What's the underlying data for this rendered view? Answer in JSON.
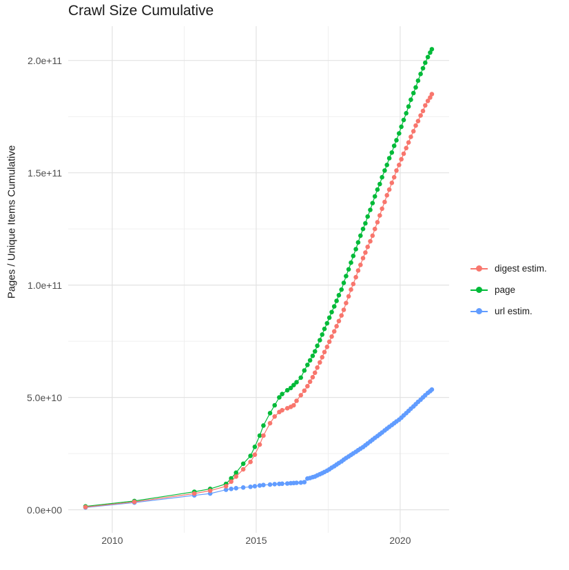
{
  "title": "Crawl Size Cumulative",
  "chart_data": {
    "type": "scatter",
    "title": "Crawl Size Cumulative",
    "xlabel": "",
    "ylabel": "Pages / Unique Items Cumulative",
    "unit_note": "y values stored in billions (1e9); axis shows scientific notation",
    "y_values_scale": 1000000000.0,
    "grid": true,
    "legend_position": "right",
    "x_axis": {
      "range": [
        2008.47,
        2021.7
      ],
      "ticks": [
        {
          "label": "2010",
          "value": 2010
        },
        {
          "label": "2015",
          "value": 2015
        },
        {
          "label": "2020",
          "value": 2020
        }
      ],
      "minor_ticks": [
        2012.5,
        2017.5
      ]
    },
    "y_axis": {
      "range": [
        -10.25,
        215.25
      ],
      "ticks": [
        {
          "label": "0.0e+00",
          "value": 0
        },
        {
          "label": "5.0e+10",
          "value": 50
        },
        {
          "label": "1.0e+11",
          "value": 100
        },
        {
          "label": "1.5e+11",
          "value": 150
        },
        {
          "label": "2.0e+11",
          "value": 200
        }
      ],
      "minor_ticks": [
        25,
        75,
        125,
        175
      ]
    },
    "x": [
      2009.07,
      2010.77,
      2012.85,
      2013.4,
      2013.95,
      2014.13,
      2014.3,
      2014.55,
      2014.8,
      2014.95,
      2015.12,
      2015.25,
      2015.48,
      2015.64,
      2015.8,
      2015.9,
      2016.08,
      2016.2,
      2016.3,
      2016.4,
      2016.55,
      2016.67,
      2016.78,
      2016.87,
      2016.96,
      2017.04,
      2017.12,
      2017.21,
      2017.29,
      2017.37,
      2017.46,
      2017.54,
      2017.62,
      2017.71,
      2017.79,
      2017.87,
      2017.96,
      2018.04,
      2018.12,
      2018.21,
      2018.29,
      2018.37,
      2018.46,
      2018.54,
      2018.62,
      2018.71,
      2018.79,
      2018.87,
      2018.96,
      2019.04,
      2019.12,
      2019.21,
      2019.29,
      2019.37,
      2019.46,
      2019.54,
      2019.62,
      2019.71,
      2019.79,
      2019.87,
      2019.96,
      2020.04,
      2020.12,
      2020.21,
      2020.29,
      2020.37,
      2020.46,
      2020.54,
      2020.62,
      2020.71,
      2020.79,
      2020.87,
      2020.96,
      2021.04,
      2021.1
    ],
    "series": [
      {
        "name": "digest estim.",
        "color": "#F8766D",
        "values": [
          1.2,
          3.5,
          7.2,
          8.5,
          10.5,
          12.5,
          14.8,
          18,
          21.3,
          24.5,
          29,
          33,
          38.5,
          41.5,
          43.5,
          44.3,
          45.2,
          45.8,
          46.5,
          48.5,
          51,
          53,
          55,
          57,
          59,
          61,
          63.3,
          65.6,
          67.9,
          70.2,
          72.5,
          74.8,
          77.1,
          79.4,
          81.7,
          84,
          86.5,
          89,
          92,
          95,
          98,
          100.5,
          103.5,
          106.5,
          109,
          112,
          114.5,
          117,
          119.5,
          122,
          125,
          128,
          131,
          134,
          137,
          140,
          142.5,
          145.5,
          148,
          151,
          153.5,
          156,
          158.5,
          161,
          163.5,
          166,
          168.5,
          171,
          173,
          175.5,
          177.5,
          180,
          182,
          183.5,
          185
        ]
      },
      {
        "name": "page",
        "color": "#00BA38",
        "values": [
          1.5,
          3.9,
          8,
          9.3,
          11.5,
          14,
          16.5,
          20.5,
          24,
          28,
          33,
          37.5,
          43,
          46.5,
          50,
          51.5,
          53.2,
          54.2,
          55.5,
          56.8,
          58.8,
          62,
          64.5,
          66.5,
          68.5,
          70.5,
          73,
          75.5,
          78,
          80.5,
          83,
          85.5,
          88,
          90.5,
          93,
          95.5,
          98,
          101,
          104,
          107,
          110,
          113,
          116,
          119,
          122,
          125,
          127.5,
          130.5,
          133.5,
          136.5,
          139.5,
          142.5,
          145,
          148,
          151,
          153.5,
          156.5,
          159,
          162,
          164.5,
          167.5,
          170.5,
          173.5,
          176.5,
          179.5,
          182.5,
          185.5,
          188,
          191,
          194,
          196.5,
          199,
          201.5,
          203.5,
          205
        ]
      },
      {
        "name": "url estim.",
        "color": "#619CFF",
        "values": [
          1.0,
          3.2,
          6.4,
          7.2,
          8.9,
          9.3,
          9.6,
          9.9,
          10.2,
          10.5,
          10.8,
          11,
          11.2,
          11.4,
          11.5,
          11.6,
          11.7,
          11.8,
          11.9,
          12,
          12.1,
          12.3,
          13.9,
          14.1,
          14.5,
          14.8,
          15.3,
          15.8,
          16.3,
          16.8,
          17.4,
          18,
          18.7,
          19.4,
          20.1,
          20.8,
          21.5,
          22.3,
          23,
          23.7,
          24.4,
          25.1,
          25.8,
          26.5,
          27.2,
          27.9,
          28.7,
          29.5,
          30.4,
          31.2,
          32,
          32.8,
          33.6,
          34.4,
          35.3,
          36.1,
          36.9,
          37.7,
          38.5,
          39.3,
          40.1,
          41,
          42,
          43,
          44,
          45,
          46,
          47,
          48,
          49,
          50,
          51,
          52,
          52.8,
          53.5
        ]
      }
    ],
    "draw_order": [
      "page",
      "url estim.",
      "digest estim."
    ],
    "colors": {
      "digest_estim": "#F8766D",
      "page": "#00BA38",
      "url_estim": "#619CFF",
      "grid_major": "#e2e2e2",
      "grid_minor": "#efefef",
      "tick_text": "#4d4d4d"
    }
  }
}
